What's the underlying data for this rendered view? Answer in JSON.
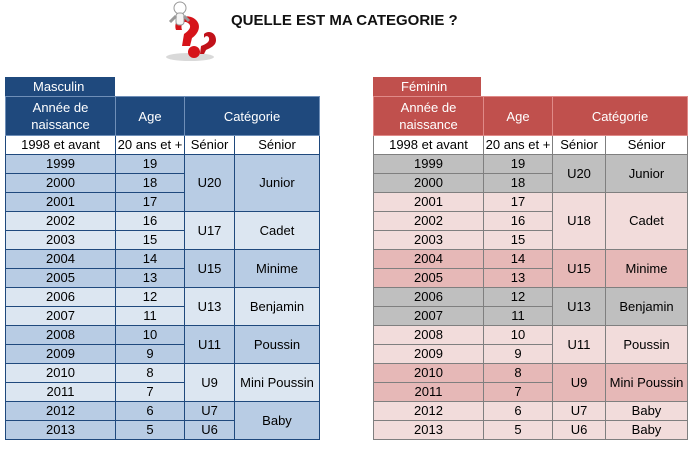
{
  "title": "QUELLE EST MA CATEGORIE ?",
  "masculin": {
    "label": "Masculin",
    "headers": {
      "year": "Année de naissance",
      "age": "Age",
      "category": "Catégorie"
    },
    "top_row": {
      "year": "1998 et avant",
      "age": "20 ans et +",
      "cat_code": "Sénior",
      "cat_name": "Sénior"
    },
    "rows": [
      {
        "year": "1999",
        "age": "19"
      },
      {
        "year": "2000",
        "age": "18"
      },
      {
        "year": "2001",
        "age": "17"
      },
      {
        "year": "2002",
        "age": "16"
      },
      {
        "year": "2003",
        "age": "15"
      },
      {
        "year": "2004",
        "age": "14"
      },
      {
        "year": "2005",
        "age": "13"
      },
      {
        "year": "2006",
        "age": "12"
      },
      {
        "year": "2007",
        "age": "11"
      },
      {
        "year": "2008",
        "age": "10"
      },
      {
        "year": "2009",
        "age": "9"
      },
      {
        "year": "2010",
        "age": "8"
      },
      {
        "year": "2011",
        "age": "7"
      },
      {
        "year": "2012",
        "age": "6"
      },
      {
        "year": "2013",
        "age": "5"
      }
    ],
    "groups": [
      {
        "code": "U20",
        "name": "Junior"
      },
      {
        "code": "U17",
        "name": "Cadet"
      },
      {
        "code": "U15",
        "name": "Minime"
      },
      {
        "code": "U13",
        "name": "Benjamin"
      },
      {
        "code": "U11",
        "name": "Poussin"
      },
      {
        "code": "U9",
        "name": "Mini Poussin"
      },
      {
        "code": "U7",
        "name": "Baby"
      },
      {
        "code": "U6"
      }
    ]
  },
  "feminin": {
    "label": "Féminin",
    "headers": {
      "year": "Année de naissance",
      "age": "Age",
      "category": "Catégorie"
    },
    "top_row": {
      "year": "1998 et avant",
      "age": "20 ans et +",
      "cat_code": "Sénior",
      "cat_name": "Sénior"
    },
    "rows": [
      {
        "year": "1999",
        "age": "19"
      },
      {
        "year": "2000",
        "age": "18"
      },
      {
        "year": "2001",
        "age": "17"
      },
      {
        "year": "2002",
        "age": "16"
      },
      {
        "year": "2003",
        "age": "15"
      },
      {
        "year": "2004",
        "age": "14"
      },
      {
        "year": "2005",
        "age": "13"
      },
      {
        "year": "2006",
        "age": "12"
      },
      {
        "year": "2007",
        "age": "11"
      },
      {
        "year": "2008",
        "age": "10"
      },
      {
        "year": "2009",
        "age": "9"
      },
      {
        "year": "2010",
        "age": "8"
      },
      {
        "year": "2011",
        "age": "7"
      },
      {
        "year": "2012",
        "age": "6"
      },
      {
        "year": "2013",
        "age": "5"
      }
    ],
    "groups": [
      {
        "code": "U20",
        "name": "Junior"
      },
      {
        "code": "U18",
        "name": "Cadet"
      },
      {
        "code": "U15",
        "name": "Minime"
      },
      {
        "code": "U13",
        "name": "Benjamin"
      },
      {
        "code": "U11",
        "name": "Poussin"
      },
      {
        "code": "U9",
        "name": "Mini Poussin"
      },
      {
        "code": "U7",
        "name": "Baby"
      },
      {
        "code": "U6",
        "name": "Baby"
      }
    ]
  }
}
